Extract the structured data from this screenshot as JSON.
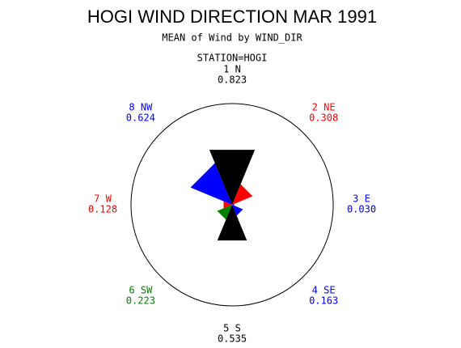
{
  "chart_data": {
    "type": "star",
    "title": "HOGI WIND DIRECTION MAR 1991",
    "subtitle": "MEAN of Wind by WIND_DIR",
    "group_label": "STATION=HOGI",
    "categories": [
      "1 N",
      "2 NE",
      "3 E",
      "4 SE",
      "5 S",
      "6 SW",
      "7 W",
      "8 NW"
    ],
    "values": [
      0.823,
      0.308,
      0.03,
      0.163,
      0.535,
      0.223,
      0.128,
      0.624
    ],
    "value_labels": [
      "0.823",
      "0.308",
      "0.030",
      "0.163",
      "0.535",
      "0.223",
      "0.128",
      "0.624"
    ],
    "colors": [
      "#000000",
      "#ff0000",
      "#0000ff",
      "#0000ff",
      "#000000",
      "#008000",
      "#ff0000",
      "#0000ff"
    ],
    "rlim": [
      0,
      1.4
    ]
  }
}
